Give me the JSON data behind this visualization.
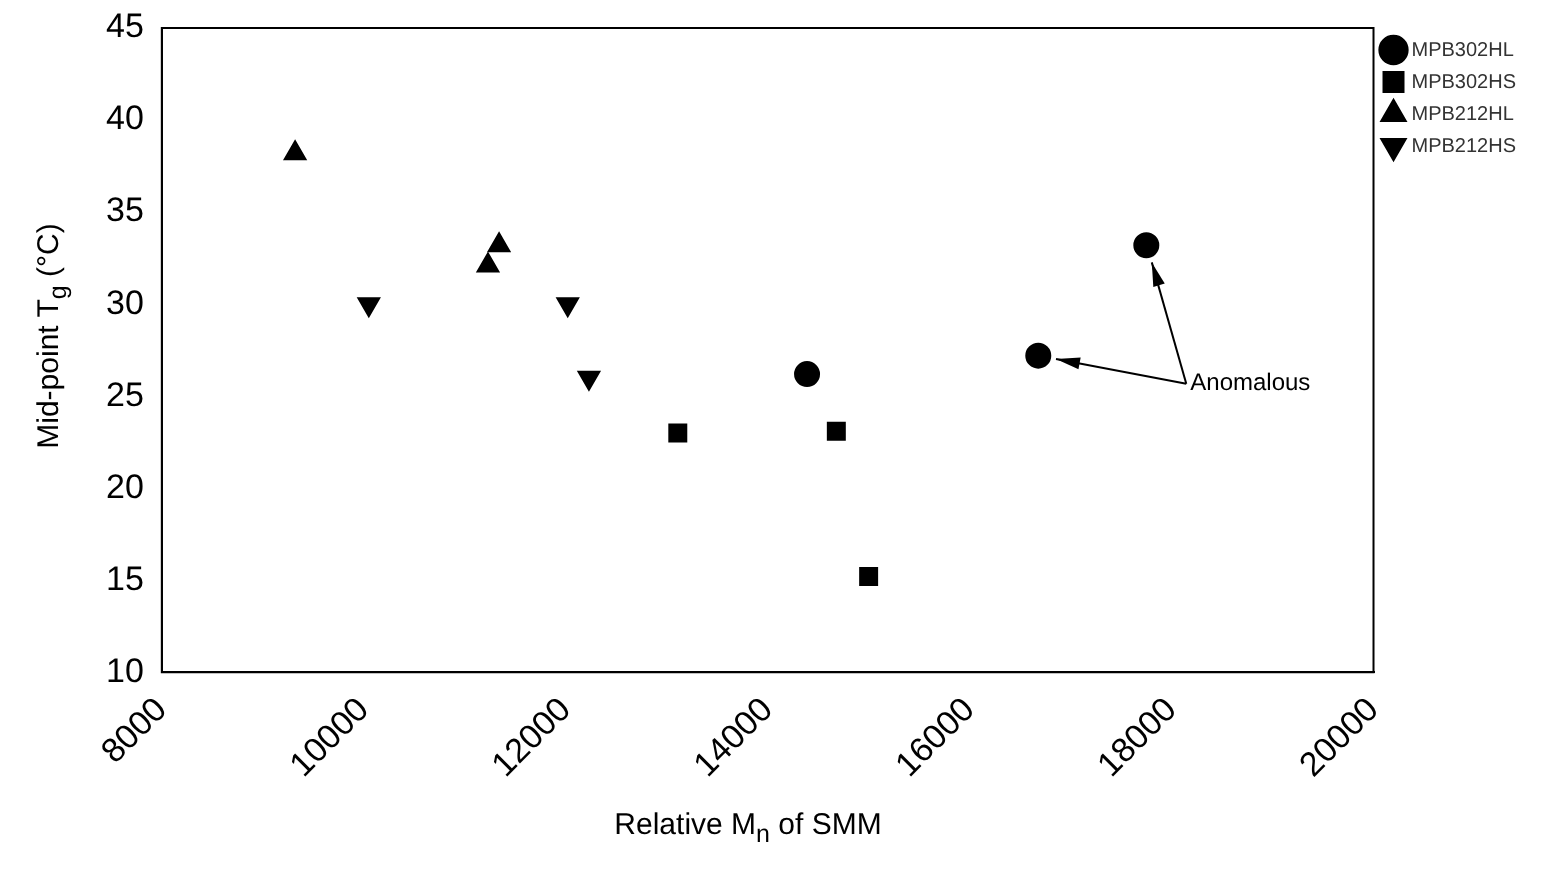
{
  "chart_data": {
    "type": "scatter",
    "xlabel": "Relative M$_{n}$ of SMM",
    "ylabel": "Mid-point T$_{g}$ (°C)",
    "xlim": [
      8000,
      20000
    ],
    "xticks": [
      8000,
      10000,
      12000,
      14000,
      16000,
      18000,
      20000
    ],
    "ylim": [
      10,
      45
    ],
    "yticks": [
      10,
      15,
      20,
      25,
      30,
      35,
      40,
      45
    ],
    "grid": false,
    "legend": "top right",
    "series": [
      {
        "name": "MPB302HL",
        "color": "#000000",
        "marker": "circle",
        "x": [
          14390,
          16680,
          17750
        ],
        "values": [
          26.2,
          27.2,
          33.2
        ]
      },
      {
        "name": "MPB302HS",
        "color": "#000000",
        "marker": "square",
        "x": [
          13110,
          14680,
          15000
        ],
        "values": [
          23,
          23.1,
          15.2
        ]
      },
      {
        "name": "MPB212HL",
        "color": "#000000",
        "marker": "triangle",
        "x": [
          9320,
          11230,
          11340
        ],
        "values": [
          38.2,
          32.1,
          33.2
        ]
      },
      {
        "name": "MPB212HS",
        "color": "#000000",
        "marker": "triangle-down",
        "x": [
          10050,
          12020,
          12230
        ],
        "values": [
          30,
          30,
          26
        ]
      }
    ],
    "annotations": [
      {
        "text": "Anomalous",
        "x": 16680,
        "y": 27.2
      }
    ]
  }
}
